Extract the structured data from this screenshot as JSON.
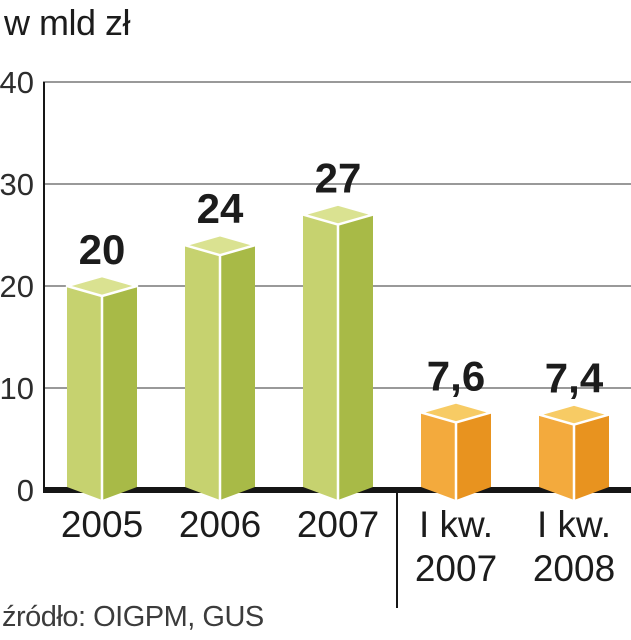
{
  "chart_data": {
    "type": "bar",
    "title": "w mld zł",
    "source": "źródło: OIGPM, GUS",
    "categories": [
      "2005",
      "2006",
      "2007",
      "I kw. 2007",
      "I kw. 2008"
    ],
    "category_lines": [
      [
        "2005"
      ],
      [
        "2006"
      ],
      [
        "2007"
      ],
      [
        "I kw.",
        "2007"
      ],
      [
        "I kw.",
        "2008"
      ]
    ],
    "values": [
      20,
      24,
      27,
      7.6,
      7.4
    ],
    "value_labels": [
      "20",
      "24",
      "27",
      "7,6",
      "7,4"
    ],
    "groups": [
      "year",
      "year",
      "year",
      "quarter",
      "quarter"
    ],
    "separator_after_index": 2,
    "ylim": [
      0,
      40
    ],
    "yticks": [
      0,
      10,
      20,
      30,
      40
    ],
    "grid": true,
    "legend": "none",
    "colors": {
      "year": {
        "left": "#c6d26f",
        "right": "#a8ba47",
        "top": "#dae291"
      },
      "quarter": {
        "left": "#f3aa3d",
        "right": "#e8931f",
        "top": "#f7cb64"
      },
      "axis": "#161616",
      "grid": "#999999",
      "label": "#1c1c1c",
      "tick": "#2d2d2d",
      "edge": "#ffffff"
    }
  }
}
